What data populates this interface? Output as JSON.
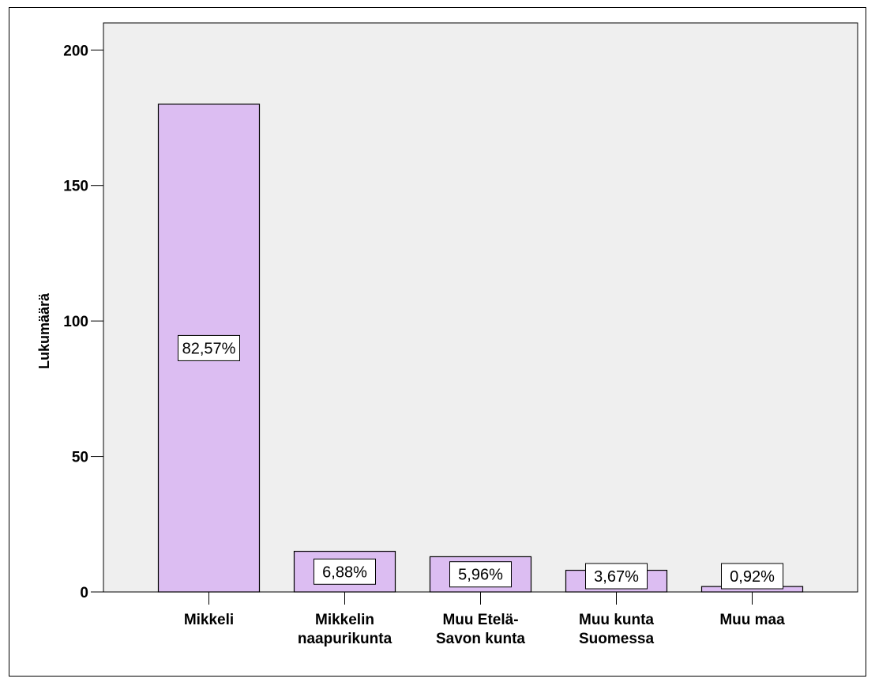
{
  "chart_data": {
    "type": "bar",
    "ylabel": "Lukumäärä",
    "ylim": [
      0,
      210
    ],
    "yticks": [
      0,
      50,
      100,
      150,
      200
    ],
    "grid": false,
    "categories": [
      [
        "Mikkeli"
      ],
      [
        "Mikkelin",
        "naapurikunta"
      ],
      [
        "Muu Etelä-",
        "Savon kunta"
      ],
      [
        "Muu kunta",
        "Suomessa"
      ],
      [
        "Muu maa"
      ]
    ],
    "values": [
      180,
      15,
      13,
      8,
      2
    ],
    "data_labels": [
      "82,57%",
      "6,88%",
      "5,96%",
      "3,67%",
      "0,92%"
    ],
    "colors": {
      "bar_fill": "#dcbdf2",
      "bar_stroke": "#000000",
      "plot_background": "#efefef",
      "label_box": "#ffffff"
    }
  }
}
